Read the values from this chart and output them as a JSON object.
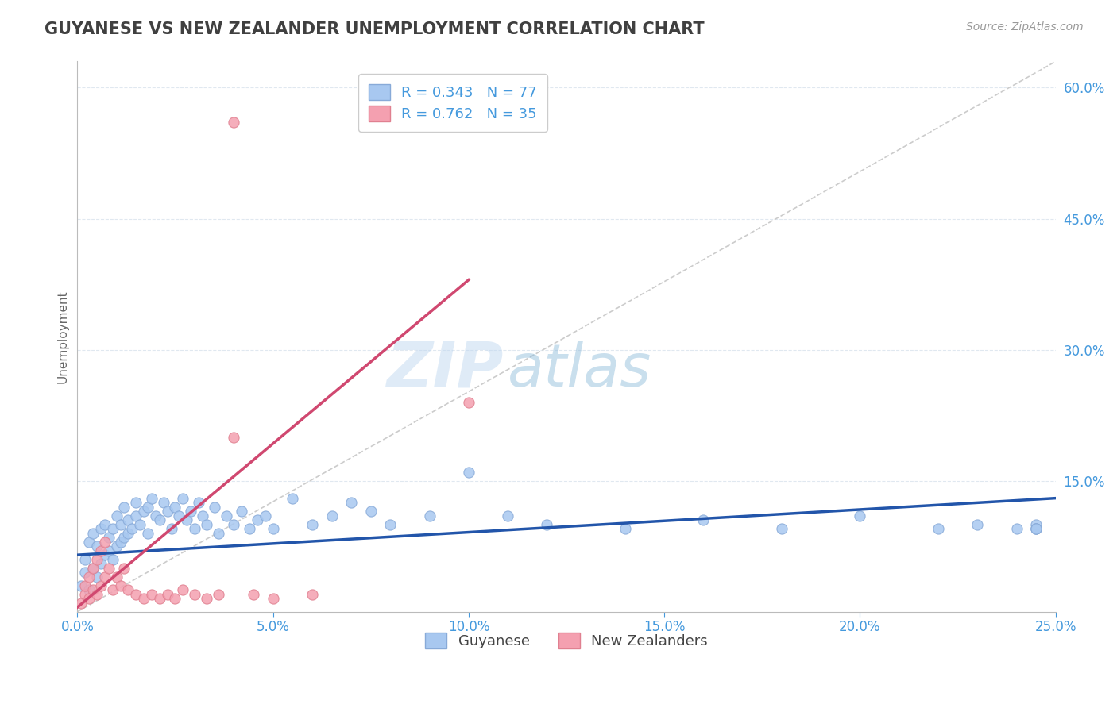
{
  "title": "GUYANESE VS NEW ZEALANDER UNEMPLOYMENT CORRELATION CHART",
  "source": "Source: ZipAtlas.com",
  "ylabel": "Unemployment",
  "xlim": [
    0.0,
    0.25
  ],
  "ylim": [
    0.0,
    0.63
  ],
  "watermark_zip": "ZIP",
  "watermark_atlas": "atlas",
  "legend_r_blue": "R = 0.343",
  "legend_n_blue": "N = 77",
  "legend_r_pink": "R = 0.762",
  "legend_n_pink": "N = 35",
  "legend_label_blue": "Guyanese",
  "legend_label_pink": "New Zealanders",
  "blue_color": "#a8c8f0",
  "pink_color": "#f4a0b0",
  "blue_line_color": "#2255aa",
  "pink_line_color": "#d04870",
  "diag_line_color": "#cccccc",
  "title_color": "#404040",
  "axis_tick_color": "#4499dd",
  "grid_color": "#e0e8f0",
  "blue_x": [
    0.001,
    0.002,
    0.002,
    0.003,
    0.003,
    0.004,
    0.004,
    0.005,
    0.005,
    0.006,
    0.006,
    0.007,
    0.007,
    0.008,
    0.008,
    0.009,
    0.009,
    0.01,
    0.01,
    0.011,
    0.011,
    0.012,
    0.012,
    0.013,
    0.013,
    0.014,
    0.015,
    0.015,
    0.016,
    0.017,
    0.018,
    0.018,
    0.019,
    0.02,
    0.021,
    0.022,
    0.023,
    0.024,
    0.025,
    0.026,
    0.027,
    0.028,
    0.029,
    0.03,
    0.031,
    0.032,
    0.033,
    0.035,
    0.036,
    0.038,
    0.04,
    0.042,
    0.044,
    0.046,
    0.048,
    0.05,
    0.055,
    0.06,
    0.065,
    0.07,
    0.075,
    0.08,
    0.09,
    0.1,
    0.11,
    0.12,
    0.14,
    0.16,
    0.18,
    0.2,
    0.22,
    0.23,
    0.24,
    0.245,
    0.245,
    0.245,
    0.245
  ],
  "blue_y": [
    0.03,
    0.045,
    0.06,
    0.025,
    0.08,
    0.05,
    0.09,
    0.04,
    0.075,
    0.055,
    0.095,
    0.065,
    0.1,
    0.07,
    0.085,
    0.06,
    0.095,
    0.075,
    0.11,
    0.08,
    0.1,
    0.085,
    0.12,
    0.09,
    0.105,
    0.095,
    0.11,
    0.125,
    0.1,
    0.115,
    0.12,
    0.09,
    0.13,
    0.11,
    0.105,
    0.125,
    0.115,
    0.095,
    0.12,
    0.11,
    0.13,
    0.105,
    0.115,
    0.095,
    0.125,
    0.11,
    0.1,
    0.12,
    0.09,
    0.11,
    0.1,
    0.115,
    0.095,
    0.105,
    0.11,
    0.095,
    0.13,
    0.1,
    0.11,
    0.125,
    0.115,
    0.1,
    0.11,
    0.16,
    0.11,
    0.1,
    0.095,
    0.105,
    0.095,
    0.11,
    0.095,
    0.1,
    0.095,
    0.1,
    0.095,
    0.095,
    0.095
  ],
  "pink_x": [
    0.001,
    0.002,
    0.002,
    0.003,
    0.003,
    0.004,
    0.004,
    0.005,
    0.005,
    0.006,
    0.006,
    0.007,
    0.007,
    0.008,
    0.009,
    0.01,
    0.011,
    0.012,
    0.013,
    0.015,
    0.017,
    0.019,
    0.021,
    0.023,
    0.025,
    0.027,
    0.03,
    0.033,
    0.036,
    0.04,
    0.045,
    0.05,
    0.06,
    0.04,
    0.1
  ],
  "pink_y": [
    0.01,
    0.02,
    0.03,
    0.015,
    0.04,
    0.025,
    0.05,
    0.02,
    0.06,
    0.03,
    0.07,
    0.04,
    0.08,
    0.05,
    0.025,
    0.04,
    0.03,
    0.05,
    0.025,
    0.02,
    0.015,
    0.02,
    0.015,
    0.02,
    0.015,
    0.025,
    0.02,
    0.015,
    0.02,
    0.2,
    0.02,
    0.015,
    0.02,
    0.56,
    0.24
  ],
  "blue_trend": [
    0.0,
    0.25,
    0.065,
    0.13
  ],
  "pink_trend": [
    0.0,
    0.1,
    0.005,
    0.38
  ],
  "xticks": [
    0.0,
    0.05,
    0.1,
    0.15,
    0.2,
    0.25
  ],
  "xtick_labels": [
    "0.0%",
    "5.0%",
    "10.0%",
    "15.0%",
    "20.0%",
    "25.0%"
  ],
  "yticks": [
    0.0,
    0.15,
    0.3,
    0.45,
    0.6
  ],
  "ytick_labels": [
    "",
    "15.0%",
    "30.0%",
    "45.0%",
    "60.0%"
  ]
}
